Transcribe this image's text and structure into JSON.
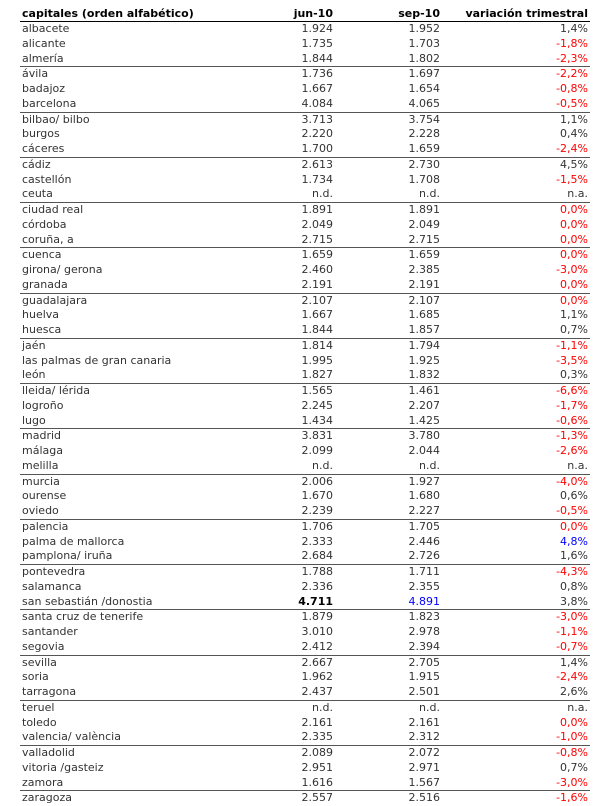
{
  "header": {
    "city": "capitales (orden alfabético)",
    "jun": "jun-10",
    "sep": "sep-10",
    "var": "variación trimestral"
  },
  "colors": {
    "negative": "#ff0000",
    "maximum": "#0000ff",
    "normal": "#333333"
  },
  "rows": [
    {
      "city": "albacete",
      "jun": "1.924",
      "sep": "1.952",
      "var": "1,4%",
      "var_color": "normal"
    },
    {
      "city": "alicante",
      "jun": "1.735",
      "sep": "1.703",
      "var": "-1,8%",
      "var_color": "negative"
    },
    {
      "city": "almería",
      "jun": "1.844",
      "sep": "1.802",
      "var": "-2,3%",
      "var_color": "negative"
    },
    {
      "city": "ávila",
      "jun": "1.736",
      "sep": "1.697",
      "var": "-2,2%",
      "var_color": "negative"
    },
    {
      "city": "badajoz",
      "jun": "1.667",
      "sep": "1.654",
      "var": "-0,8%",
      "var_color": "negative"
    },
    {
      "city": "barcelona",
      "jun": "4.084",
      "sep": "4.065",
      "var": "-0,5%",
      "var_color": "negative"
    },
    {
      "city": "bilbao/ bilbo",
      "jun": "3.713",
      "sep": "3.754",
      "var": "1,1%",
      "var_color": "normal"
    },
    {
      "city": "burgos",
      "jun": "2.220",
      "sep": "2.228",
      "var": "0,4%",
      "var_color": "normal"
    },
    {
      "city": "cáceres",
      "jun": "1.700",
      "sep": "1.659",
      "var": "-2,4%",
      "var_color": "negative"
    },
    {
      "city": "cádiz",
      "jun": "2.613",
      "sep": "2.730",
      "var": "4,5%",
      "var_color": "normal"
    },
    {
      "city": "castellón",
      "jun": "1.734",
      "sep": "1.708",
      "var": "-1,5%",
      "var_color": "negative"
    },
    {
      "city": "ceuta",
      "jun": "n.d.",
      "sep": "n.d.",
      "var": "n.a.",
      "var_color": "normal"
    },
    {
      "city": "ciudad real",
      "jun": "1.891",
      "sep": "1.891",
      "var": "0,0%",
      "var_color": "negative"
    },
    {
      "city": "córdoba",
      "jun": "2.049",
      "sep": "2.049",
      "var": "0,0%",
      "var_color": "negative"
    },
    {
      "city": "coruña, a",
      "jun": "2.715",
      "sep": "2.715",
      "var": "0,0%",
      "var_color": "negative"
    },
    {
      "city": "cuenca",
      "jun": "1.659",
      "sep": "1.659",
      "var": "0,0%",
      "var_color": "negative"
    },
    {
      "city": "girona/ gerona",
      "jun": "2.460",
      "sep": "2.385",
      "var": "-3,0%",
      "var_color": "negative"
    },
    {
      "city": "granada",
      "jun": "2.191",
      "sep": "2.191",
      "var": "0,0%",
      "var_color": "negative"
    },
    {
      "city": "guadalajara",
      "jun": "2.107",
      "sep": "2.107",
      "var": "0,0%",
      "var_color": "negative"
    },
    {
      "city": "huelva",
      "jun": "1.667",
      "sep": "1.685",
      "var": "1,1%",
      "var_color": "normal"
    },
    {
      "city": "huesca",
      "jun": "1.844",
      "sep": "1.857",
      "var": "0,7%",
      "var_color": "normal"
    },
    {
      "city": "jaén",
      "jun": "1.814",
      "sep": "1.794",
      "var": "-1,1%",
      "var_color": "negative"
    },
    {
      "city": "las palmas de gran canaria",
      "jun": "1.995",
      "sep": "1.925",
      "var": "-3,5%",
      "var_color": "negative"
    },
    {
      "city": "león",
      "jun": "1.827",
      "sep": "1.832",
      "var": "0,3%",
      "var_color": "normal"
    },
    {
      "city": "lleida/ lérida",
      "jun": "1.565",
      "sep": "1.461",
      "var": "-6,6%",
      "var_color": "negative"
    },
    {
      "city": "logroño",
      "jun": "2.245",
      "sep": "2.207",
      "var": "-1,7%",
      "var_color": "negative"
    },
    {
      "city": "lugo",
      "jun": "1.434",
      "sep": "1.425",
      "var": "-0,6%",
      "var_color": "negative"
    },
    {
      "city": "madrid",
      "jun": "3.831",
      "sep": "3.780",
      "var": "-1,3%",
      "var_color": "negative"
    },
    {
      "city": "málaga",
      "jun": "2.099",
      "sep": "2.044",
      "var": "-2,6%",
      "var_color": "negative"
    },
    {
      "city": "melilla",
      "jun": "n.d.",
      "sep": "n.d.",
      "var": "n.a.",
      "var_color": "normal"
    },
    {
      "city": "murcia",
      "jun": "2.006",
      "sep": "1.927",
      "var": "-4,0%",
      "var_color": "negative"
    },
    {
      "city": "ourense",
      "jun": "1.670",
      "sep": "1.680",
      "var": "0,6%",
      "var_color": "normal"
    },
    {
      "city": "oviedo",
      "jun": "2.239",
      "sep": "2.227",
      "var": "-0,5%",
      "var_color": "negative"
    },
    {
      "city": "palencia",
      "jun": "1.706",
      "sep": "1.705",
      "var": "0,0%",
      "var_color": "negative"
    },
    {
      "city": "palma de mallorca",
      "jun": "2.333",
      "sep": "2.446",
      "var": "4,8%",
      "var_color": "maximum"
    },
    {
      "city": "pamplona/ iruña",
      "jun": "2.684",
      "sep": "2.726",
      "var": "1,6%",
      "var_color": "normal"
    },
    {
      "city": "pontevedra",
      "jun": "1.788",
      "sep": "1.711",
      "var": "-4,3%",
      "var_color": "negative"
    },
    {
      "city": "salamanca",
      "jun": "2.336",
      "sep": "2.355",
      "var": "0,8%",
      "var_color": "normal"
    },
    {
      "city": "san sebastián /donostia",
      "jun": "4.711",
      "sep": "4.891",
      "var": "3,8%",
      "var_color": "normal",
      "jun_style": "bold",
      "sep_color": "maximum"
    },
    {
      "city": "santa cruz de tenerife",
      "jun": "1.879",
      "sep": "1.823",
      "var": "-3,0%",
      "var_color": "negative"
    },
    {
      "city": "santander",
      "jun": "3.010",
      "sep": "2.978",
      "var": "-1,1%",
      "var_color": "negative"
    },
    {
      "city": "segovia",
      "jun": "2.412",
      "sep": "2.394",
      "var": "-0,7%",
      "var_color": "negative"
    },
    {
      "city": "sevilla",
      "jun": "2.667",
      "sep": "2.705",
      "var": "1,4%",
      "var_color": "normal"
    },
    {
      "city": "soria",
      "jun": "1.962",
      "sep": "1.915",
      "var": "-2,4%",
      "var_color": "negative"
    },
    {
      "city": "tarragona",
      "jun": "2.437",
      "sep": "2.501",
      "var": "2,6%",
      "var_color": "normal"
    },
    {
      "city": "teruel",
      "jun": "n.d.",
      "sep": "n.d.",
      "var": "n.a.",
      "var_color": "normal"
    },
    {
      "city": "toledo",
      "jun": "2.161",
      "sep": "2.161",
      "var": "0,0%",
      "var_color": "negative"
    },
    {
      "city": "valencia/ valència",
      "jun": "2.335",
      "sep": "2.312",
      "var": "-1,0%",
      "var_color": "negative"
    },
    {
      "city": "valladolid",
      "jun": "2.089",
      "sep": "2.072",
      "var": "-0,8%",
      "var_color": "negative"
    },
    {
      "city": "vitoria /gasteiz",
      "jun": "2.951",
      "sep": "2.971",
      "var": "0,7%",
      "var_color": "normal"
    },
    {
      "city": "zamora",
      "jun": "1.616",
      "sep": "1.567",
      "var": "-3,0%",
      "var_color": "negative"
    },
    {
      "city": "zaragoza",
      "jun": "2.557",
      "sep": "2.516",
      "var": "-1,6%",
      "var_color": "negative"
    }
  ]
}
